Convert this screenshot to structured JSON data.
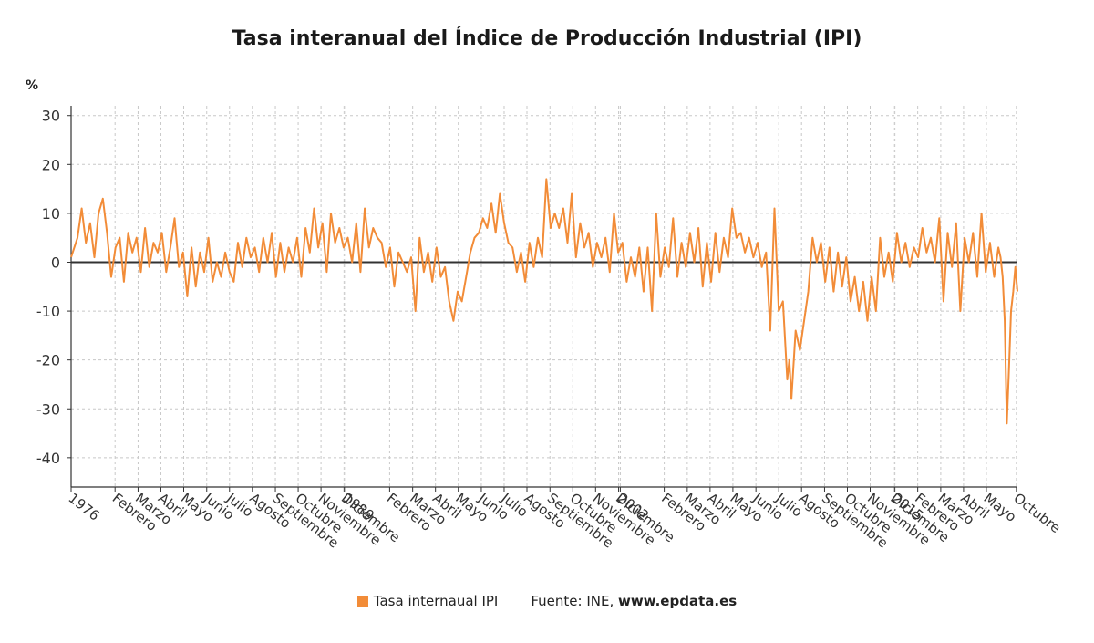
{
  "title": "Tasa interanual del Índice de Producción Industrial (IPI)",
  "legend": {
    "series_label": "Tasa internaual IPI",
    "source_prefix": "Fuente: INE, ",
    "source_site": "www.epdata.es"
  },
  "colors": {
    "series": "#f28c38",
    "zero_line": "#333333",
    "grid": "#c8c8c8",
    "axis": "#333333"
  },
  "chart_data": {
    "type": "line",
    "title": "Tasa interanual del Índice de Producción Industrial (IPI)",
    "ylabel": "%",
    "xlabel": "",
    "ylim": [
      -46,
      32
    ],
    "yticks": [
      30,
      20,
      10,
      0,
      -10,
      -20,
      -30,
      -40
    ],
    "grid": true,
    "legend_position": "bottom",
    "x_range": [
      1976.0,
      2020.8
    ],
    "x_tick_labels": [
      {
        "x": 1976.0,
        "label": "1976"
      },
      {
        "x": 1978.08,
        "label": "Febrero"
      },
      {
        "x": 1979.17,
        "label": "Marzo"
      },
      {
        "x": 1980.25,
        "label": "Abril"
      },
      {
        "x": 1981.33,
        "label": "Mayo"
      },
      {
        "x": 1982.42,
        "label": "Junio"
      },
      {
        "x": 1983.5,
        "label": "Julio"
      },
      {
        "x": 1984.58,
        "label": "Agosto"
      },
      {
        "x": 1985.67,
        "label": "Septiembre"
      },
      {
        "x": 1986.75,
        "label": "Octubre"
      },
      {
        "x": 1987.83,
        "label": "Noviembre"
      },
      {
        "x": 1988.92,
        "label": "Diciembre"
      },
      {
        "x": 1989.0,
        "label": "1989"
      },
      {
        "x": 1991.08,
        "label": "Febrero"
      },
      {
        "x": 1992.17,
        "label": "Marzo"
      },
      {
        "x": 1993.25,
        "label": "Abril"
      },
      {
        "x": 1994.33,
        "label": "Mayo"
      },
      {
        "x": 1995.42,
        "label": "Junio"
      },
      {
        "x": 1996.5,
        "label": "Julio"
      },
      {
        "x": 1997.58,
        "label": "Agosto"
      },
      {
        "x": 1998.67,
        "label": "Septiembre"
      },
      {
        "x": 1999.75,
        "label": "Octubre"
      },
      {
        "x": 2000.83,
        "label": "Noviembre"
      },
      {
        "x": 2001.92,
        "label": "Diciembre"
      },
      {
        "x": 2002.0,
        "label": "2002"
      },
      {
        "x": 2004.08,
        "label": "Febrero"
      },
      {
        "x": 2005.17,
        "label": "Marzo"
      },
      {
        "x": 2006.25,
        "label": "Abril"
      },
      {
        "x": 2007.33,
        "label": "Mayo"
      },
      {
        "x": 2008.42,
        "label": "Junio"
      },
      {
        "x": 2009.5,
        "label": "Julio"
      },
      {
        "x": 2010.58,
        "label": "Agosto"
      },
      {
        "x": 2011.67,
        "label": "Septiembre"
      },
      {
        "x": 2012.75,
        "label": "Octubre"
      },
      {
        "x": 2013.83,
        "label": "Noviembre"
      },
      {
        "x": 2014.92,
        "label": "Diciembre"
      },
      {
        "x": 2015.0,
        "label": "2015"
      },
      {
        "x": 2016.08,
        "label": "Febrero"
      },
      {
        "x": 2017.17,
        "label": "Marzo"
      },
      {
        "x": 2018.25,
        "label": "Abril"
      },
      {
        "x": 2019.33,
        "label": "Mayo"
      },
      {
        "x": 2020.75,
        "label": "Octubre"
      }
    ],
    "series": [
      {
        "name": "Tasa internaual IPI",
        "points": [
          [
            1976.0,
            1
          ],
          [
            1976.3,
            5
          ],
          [
            1976.5,
            11
          ],
          [
            1976.7,
            4
          ],
          [
            1976.9,
            8
          ],
          [
            1977.1,
            1
          ],
          [
            1977.3,
            10
          ],
          [
            1977.5,
            13
          ],
          [
            1977.7,
            6
          ],
          [
            1977.9,
            -3
          ],
          [
            1978.1,
            3
          ],
          [
            1978.3,
            5
          ],
          [
            1978.5,
            -4
          ],
          [
            1978.7,
            6
          ],
          [
            1978.9,
            2
          ],
          [
            1979.1,
            5
          ],
          [
            1979.3,
            -2
          ],
          [
            1979.5,
            7
          ],
          [
            1979.7,
            -1
          ],
          [
            1979.9,
            4
          ],
          [
            1980.1,
            2
          ],
          [
            1980.3,
            6
          ],
          [
            1980.5,
            -2
          ],
          [
            1980.7,
            3
          ],
          [
            1980.9,
            9
          ],
          [
            1981.1,
            -1
          ],
          [
            1981.3,
            2
          ],
          [
            1981.5,
            -7
          ],
          [
            1981.7,
            3
          ],
          [
            1981.9,
            -5
          ],
          [
            1982.1,
            2
          ],
          [
            1982.3,
            -2
          ],
          [
            1982.5,
            5
          ],
          [
            1982.7,
            -4
          ],
          [
            1982.9,
            0
          ],
          [
            1983.1,
            -3
          ],
          [
            1983.3,
            2
          ],
          [
            1983.5,
            -2
          ],
          [
            1983.7,
            -4
          ],
          [
            1983.9,
            4
          ],
          [
            1984.1,
            -1
          ],
          [
            1984.3,
            5
          ],
          [
            1984.5,
            1
          ],
          [
            1984.7,
            3
          ],
          [
            1984.9,
            -2
          ],
          [
            1985.1,
            5
          ],
          [
            1985.3,
            0
          ],
          [
            1985.5,
            6
          ],
          [
            1985.7,
            -3
          ],
          [
            1985.9,
            4
          ],
          [
            1986.1,
            -2
          ],
          [
            1986.3,
            3
          ],
          [
            1986.5,
            0
          ],
          [
            1986.7,
            5
          ],
          [
            1986.9,
            -3
          ],
          [
            1987.1,
            7
          ],
          [
            1987.3,
            2
          ],
          [
            1987.5,
            11
          ],
          [
            1987.7,
            3
          ],
          [
            1987.9,
            8
          ],
          [
            1988.1,
            -2
          ],
          [
            1988.3,
            10
          ],
          [
            1988.5,
            4
          ],
          [
            1988.7,
            7
          ],
          [
            1988.9,
            3
          ],
          [
            1989.1,
            5
          ],
          [
            1989.3,
            0
          ],
          [
            1989.5,
            8
          ],
          [
            1989.7,
            -2
          ],
          [
            1989.9,
            11
          ],
          [
            1990.1,
            3
          ],
          [
            1990.3,
            7
          ],
          [
            1990.5,
            5
          ],
          [
            1990.7,
            4
          ],
          [
            1990.9,
            -1
          ],
          [
            1991.1,
            3
          ],
          [
            1991.3,
            -5
          ],
          [
            1991.5,
            2
          ],
          [
            1991.7,
            0
          ],
          [
            1991.9,
            -2
          ],
          [
            1992.1,
            1
          ],
          [
            1992.3,
            -10
          ],
          [
            1992.5,
            5
          ],
          [
            1992.7,
            -2
          ],
          [
            1992.9,
            2
          ],
          [
            1993.1,
            -4
          ],
          [
            1993.3,
            3
          ],
          [
            1993.5,
            -3
          ],
          [
            1993.7,
            -1
          ],
          [
            1993.9,
            -8
          ],
          [
            1994.0,
            -10
          ],
          [
            1994.1,
            -12
          ],
          [
            1994.3,
            -6
          ],
          [
            1994.5,
            -8
          ],
          [
            1994.7,
            -3
          ],
          [
            1994.9,
            2
          ],
          [
            1995.1,
            5
          ],
          [
            1995.3,
            6
          ],
          [
            1995.5,
            9
          ],
          [
            1995.7,
            7
          ],
          [
            1995.9,
            12
          ],
          [
            1996.1,
            6
          ],
          [
            1996.3,
            14
          ],
          [
            1996.5,
            8
          ],
          [
            1996.7,
            4
          ],
          [
            1996.9,
            3
          ],
          [
            1997.1,
            -2
          ],
          [
            1997.3,
            2
          ],
          [
            1997.5,
            -4
          ],
          [
            1997.7,
            4
          ],
          [
            1997.9,
            -1
          ],
          [
            1998.1,
            5
          ],
          [
            1998.3,
            1
          ],
          [
            1998.5,
            17
          ],
          [
            1998.7,
            7
          ],
          [
            1998.9,
            10
          ],
          [
            1999.1,
            7
          ],
          [
            1999.3,
            11
          ],
          [
            1999.5,
            4
          ],
          [
            1999.7,
            14
          ],
          [
            1999.9,
            1
          ],
          [
            2000.1,
            8
          ],
          [
            2000.3,
            3
          ],
          [
            2000.5,
            6
          ],
          [
            2000.7,
            -1
          ],
          [
            2000.9,
            4
          ],
          [
            2001.1,
            1
          ],
          [
            2001.3,
            5
          ],
          [
            2001.5,
            -2
          ],
          [
            2001.7,
            10
          ],
          [
            2001.9,
            2
          ],
          [
            2002.1,
            4
          ],
          [
            2002.3,
            -4
          ],
          [
            2002.5,
            1
          ],
          [
            2002.7,
            -3
          ],
          [
            2002.9,
            3
          ],
          [
            2003.1,
            -6
          ],
          [
            2003.3,
            3
          ],
          [
            2003.5,
            -10
          ],
          [
            2003.7,
            10
          ],
          [
            2003.9,
            -3
          ],
          [
            2004.1,
            3
          ],
          [
            2004.3,
            -1
          ],
          [
            2004.5,
            9
          ],
          [
            2004.7,
            -3
          ],
          [
            2004.9,
            4
          ],
          [
            2005.1,
            -1
          ],
          [
            2005.3,
            6
          ],
          [
            2005.5,
            0
          ],
          [
            2005.7,
            7
          ],
          [
            2005.9,
            -5
          ],
          [
            2006.1,
            4
          ],
          [
            2006.3,
            -4
          ],
          [
            2006.5,
            6
          ],
          [
            2006.7,
            -2
          ],
          [
            2006.9,
            5
          ],
          [
            2007.1,
            1
          ],
          [
            2007.3,
            11
          ],
          [
            2007.5,
            5
          ],
          [
            2007.7,
            6
          ],
          [
            2007.9,
            2
          ],
          [
            2008.1,
            5
          ],
          [
            2008.3,
            1
          ],
          [
            2008.5,
            4
          ],
          [
            2008.7,
            -1
          ],
          [
            2008.9,
            2
          ],
          [
            2009.1,
            -14
          ],
          [
            2009.3,
            11
          ],
          [
            2009.5,
            -10
          ],
          [
            2009.7,
            -8
          ],
          [
            2009.9,
            -24
          ],
          [
            2010.0,
            -20
          ],
          [
            2010.1,
            -28
          ],
          [
            2010.3,
            -14
          ],
          [
            2010.5,
            -18
          ],
          [
            2010.7,
            -12
          ],
          [
            2010.9,
            -6
          ],
          [
            2011.1,
            5
          ],
          [
            2011.3,
            0
          ],
          [
            2011.5,
            4
          ],
          [
            2011.7,
            -4
          ],
          [
            2011.9,
            3
          ],
          [
            2012.1,
            -6
          ],
          [
            2012.3,
            2
          ],
          [
            2012.5,
            -5
          ],
          [
            2012.7,
            1
          ],
          [
            2012.9,
            -8
          ],
          [
            2013.1,
            -3
          ],
          [
            2013.3,
            -10
          ],
          [
            2013.5,
            -4
          ],
          [
            2013.7,
            -12
          ],
          [
            2013.9,
            -3
          ],
          [
            2014.1,
            -10
          ],
          [
            2014.3,
            5
          ],
          [
            2014.5,
            -3
          ],
          [
            2014.7,
            2
          ],
          [
            2014.9,
            -4
          ],
          [
            2015.1,
            6
          ],
          [
            2015.3,
            0
          ],
          [
            2015.5,
            4
          ],
          [
            2015.7,
            -1
          ],
          [
            2015.9,
            3
          ],
          [
            2016.1,
            1
          ],
          [
            2016.3,
            7
          ],
          [
            2016.5,
            2
          ],
          [
            2016.7,
            5
          ],
          [
            2016.9,
            0
          ],
          [
            2017.1,
            9
          ],
          [
            2017.3,
            -8
          ],
          [
            2017.5,
            6
          ],
          [
            2017.7,
            -1
          ],
          [
            2017.9,
            8
          ],
          [
            2018.1,
            -10
          ],
          [
            2018.3,
            5
          ],
          [
            2018.5,
            0
          ],
          [
            2018.7,
            6
          ],
          [
            2018.9,
            -3
          ],
          [
            2019.1,
            10
          ],
          [
            2019.3,
            -2
          ],
          [
            2019.5,
            4
          ],
          [
            2019.7,
            -3
          ],
          [
            2019.9,
            3
          ],
          [
            2020.0,
            1
          ],
          [
            2020.1,
            -3
          ],
          [
            2020.2,
            -12
          ],
          [
            2020.3,
            -33
          ],
          [
            2020.4,
            -22
          ],
          [
            2020.5,
            -10
          ],
          [
            2020.6,
            -6
          ],
          [
            2020.7,
            -1
          ],
          [
            2020.8,
            -6
          ]
        ]
      }
    ]
  }
}
